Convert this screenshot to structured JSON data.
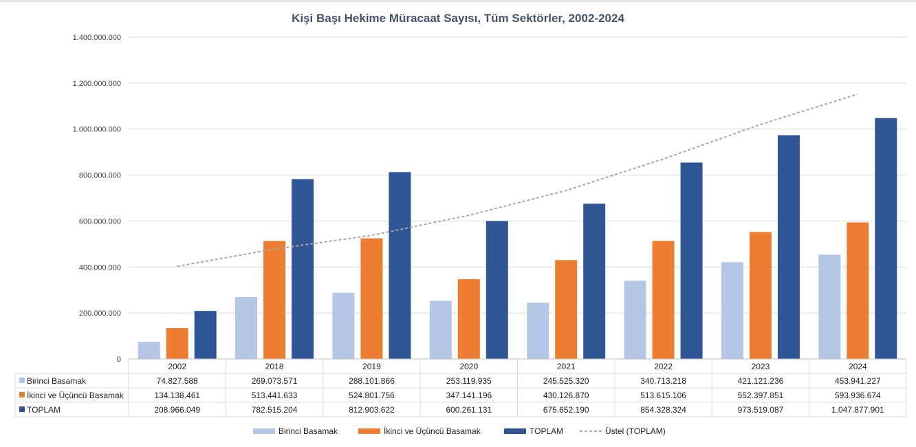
{
  "chart_data": {
    "type": "bar",
    "title": "Kişi Başı Hekime Müracaat Sayısı, Tüm Sektörler, 2002-2024",
    "categories": [
      "2002",
      "2018",
      "2019",
      "2020",
      "2021",
      "2022",
      "2023",
      "2024"
    ],
    "series": [
      {
        "name": "Birinci Basamak",
        "color": "#b4c7e7",
        "values": [
          74827588,
          269073571,
          288101866,
          253119935,
          245525320,
          340713218,
          421121236,
          453941227
        ],
        "labels": [
          "74.827.588",
          "269.073.571",
          "288.101.866",
          "253.119.935",
          "245.525.320",
          "340.713.218",
          "421.121.236",
          "453.941.227"
        ]
      },
      {
        "name": "İkinci ve Üçüncü Basamak",
        "color": "#ed7d31",
        "values": [
          134138461,
          513441633,
          524801756,
          347141196,
          430126870,
          513615106,
          552397851,
          593936674
        ],
        "labels": [
          "134.138.461",
          "513.441.633",
          "524.801.756",
          "347.141.196",
          "430.126.870",
          "513.615.106",
          "552.397.851",
          "593.936.674"
        ]
      },
      {
        "name": "TOPLAM",
        "color": "#2f5597",
        "values": [
          208966049,
          782515204,
          812903622,
          600261131,
          675652190,
          854328324,
          973519087,
          1047877901
        ],
        "labels": [
          "208.966.049",
          "782.515.204",
          "812.903.622",
          "600.261.131",
          "675.652.190",
          "854.328.324",
          "973.519.087",
          "1.047.877.901"
        ]
      }
    ],
    "trendline": {
      "name": "Üstel (TOPLAM)",
      "type": "exponential",
      "color": "#a6a6a6",
      "values": [
        403000000,
        478000000,
        538000000,
        625000000,
        733000000,
        870000000,
        1020000000,
        1152000000
      ]
    },
    "ylim": [
      0,
      1400000000
    ],
    "yticks": [
      0,
      200000000,
      400000000,
      600000000,
      800000000,
      1000000000,
      1200000000,
      1400000000
    ],
    "ytick_labels": [
      "0",
      "200.000.000",
      "400.000.000",
      "600.000.000",
      "800.000.000",
      "1.000.000.000",
      "1.200.000.000",
      "1.400.000.000"
    ],
    "grid": true,
    "data_table": true,
    "legend_position": "bottom"
  }
}
